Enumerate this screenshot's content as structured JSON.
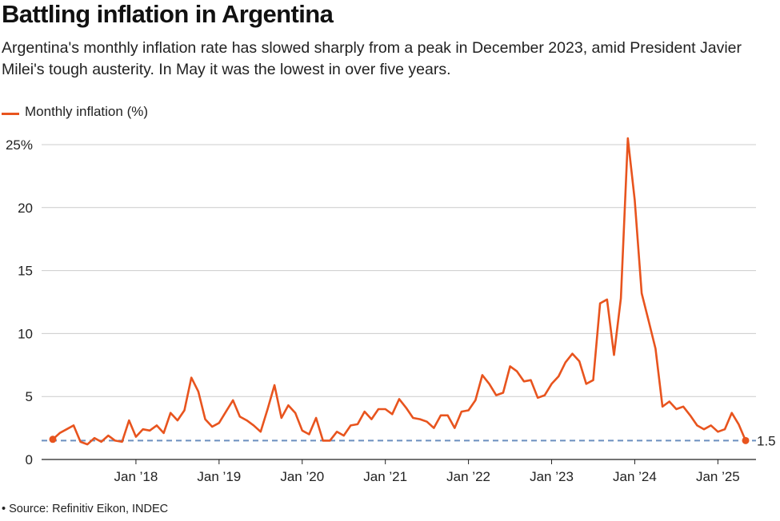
{
  "title": "Battling inflation in Argentina",
  "subtitle": "Argentina's monthly inflation rate has slowed sharply from a peak in December 2023, amid President Javier Milei's tough austerity. In May it was the lowest in over five years.",
  "source": "• Source: Refinitiv Eikon, INDEC",
  "colors": {
    "line": "#e8541e",
    "grid": "#cccccc",
    "reference": "#6b8fbf",
    "axis": "#222222"
  },
  "chart_data": {
    "type": "line",
    "title": "Battling inflation in Argentina",
    "ylabel": "",
    "xlabel": "",
    "ylim": [
      0,
      25
    ],
    "yticks": [
      0,
      5,
      10,
      15,
      20,
      25
    ],
    "ytick_labels": [
      "0",
      "5",
      "10",
      "15",
      "20",
      "25%"
    ],
    "xticks": [
      {
        "date": "2018-01",
        "label": "Jan ’18"
      },
      {
        "date": "2019-01",
        "label": "Jan ’19"
      },
      {
        "date": "2020-01",
        "label": "Jan ’20"
      },
      {
        "date": "2021-01",
        "label": "Jan ’21"
      },
      {
        "date": "2022-01",
        "label": "Jan ’22"
      },
      {
        "date": "2023-01",
        "label": "Jan ’23"
      },
      {
        "date": "2024-01",
        "label": "Jan ’24"
      },
      {
        "date": "2025-01",
        "label": "Jan ’25"
      }
    ],
    "grid": true,
    "legend": "top-left",
    "reference_line": {
      "value": 1.5,
      "label": "1.5"
    },
    "series": [
      {
        "name": "Monthly inflation (%)",
        "x": [
          "2017-01",
          "2017-02",
          "2017-03",
          "2017-04",
          "2017-05",
          "2017-06",
          "2017-07",
          "2017-08",
          "2017-09",
          "2017-10",
          "2017-11",
          "2017-12",
          "2018-01",
          "2018-02",
          "2018-03",
          "2018-04",
          "2018-05",
          "2018-06",
          "2018-07",
          "2018-08",
          "2018-09",
          "2018-10",
          "2018-11",
          "2018-12",
          "2019-01",
          "2019-02",
          "2019-03",
          "2019-04",
          "2019-05",
          "2019-06",
          "2019-07",
          "2019-08",
          "2019-09",
          "2019-10",
          "2019-11",
          "2019-12",
          "2020-01",
          "2020-02",
          "2020-03",
          "2020-04",
          "2020-05",
          "2020-06",
          "2020-07",
          "2020-08",
          "2020-09",
          "2020-10",
          "2020-11",
          "2020-12",
          "2021-01",
          "2021-02",
          "2021-03",
          "2021-04",
          "2021-05",
          "2021-06",
          "2021-07",
          "2021-08",
          "2021-09",
          "2021-10",
          "2021-11",
          "2021-12",
          "2022-01",
          "2022-02",
          "2022-03",
          "2022-04",
          "2022-05",
          "2022-06",
          "2022-07",
          "2022-08",
          "2022-09",
          "2022-10",
          "2022-11",
          "2022-12",
          "2023-01",
          "2023-02",
          "2023-03",
          "2023-04",
          "2023-05",
          "2023-06",
          "2023-07",
          "2023-08",
          "2023-09",
          "2023-10",
          "2023-11",
          "2023-12",
          "2024-01",
          "2024-02",
          "2024-03",
          "2024-04",
          "2024-05",
          "2024-06",
          "2024-07",
          "2024-08",
          "2024-09",
          "2024-10",
          "2024-11",
          "2024-12",
          "2025-01",
          "2025-02",
          "2025-03",
          "2025-04",
          "2025-05"
        ],
        "values": [
          1.6,
          2.1,
          2.4,
          2.7,
          1.4,
          1.2,
          1.7,
          1.4,
          1.9,
          1.5,
          1.4,
          3.1,
          1.8,
          2.4,
          2.3,
          2.7,
          2.1,
          3.7,
          3.1,
          3.9,
          6.5,
          5.4,
          3.2,
          2.6,
          2.9,
          3.8,
          4.7,
          3.4,
          3.1,
          2.7,
          2.2,
          4.0,
          5.9,
          3.3,
          4.3,
          3.7,
          2.3,
          2.0,
          3.3,
          1.5,
          1.5,
          2.2,
          1.9,
          2.7,
          2.8,
          3.8,
          3.2,
          4.0,
          4.0,
          3.6,
          4.8,
          4.1,
          3.3,
          3.2,
          3.0,
          2.5,
          3.5,
          3.5,
          2.5,
          3.8,
          3.9,
          4.7,
          6.7,
          6.0,
          5.1,
          5.3,
          7.4,
          7.0,
          6.2,
          6.3,
          4.9,
          5.1,
          6.0,
          6.6,
          7.7,
          8.4,
          7.8,
          6.0,
          6.3,
          12.4,
          12.7,
          8.3,
          12.8,
          25.5,
          20.6,
          13.2,
          11.0,
          8.8,
          4.2,
          4.6,
          4.0,
          4.2,
          3.5,
          2.7,
          2.4,
          2.7,
          2.2,
          2.4,
          3.7,
          2.8,
          1.5
        ]
      }
    ]
  }
}
